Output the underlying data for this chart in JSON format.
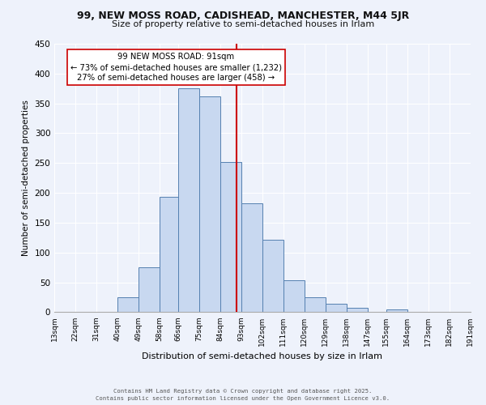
{
  "title": "99, NEW MOSS ROAD, CADISHEAD, MANCHESTER, M44 5JR",
  "subtitle": "Size of property relative to semi-detached houses in Irlam",
  "xlabel": "Distribution of semi-detached houses by size in Irlam",
  "ylabel": "Number of semi-detached properties",
  "bin_edges": [
    13,
    22,
    31,
    40,
    49,
    58,
    66,
    75,
    84,
    93,
    102,
    111,
    120,
    129,
    138,
    147,
    155,
    164,
    173,
    182,
    191
  ],
  "counts": [
    0,
    0,
    0,
    25,
    75,
    193,
    375,
    362,
    252,
    183,
    122,
    53,
    25,
    14,
    7,
    0,
    5,
    0,
    0,
    0
  ],
  "bar_color": "#c8d8f0",
  "bar_edge_color": "#5580b0",
  "property_size": 91,
  "vline_color": "#cc0000",
  "annotation_line1": "99 NEW MOSS ROAD: 91sqm",
  "annotation_line2": "← 73% of semi-detached houses are smaller (1,232)",
  "annotation_line3": "27% of semi-detached houses are larger (458) →",
  "annotation_box_color": "#ffffff",
  "annotation_box_edge": "#cc0000",
  "ylim": [
    0,
    450
  ],
  "yticks": [
    0,
    50,
    100,
    150,
    200,
    250,
    300,
    350,
    400,
    450
  ],
  "tick_labels": [
    "13sqm",
    "22sqm",
    "31sqm",
    "40sqm",
    "49sqm",
    "58sqm",
    "66sqm",
    "75sqm",
    "84sqm",
    "93sqm",
    "102sqm",
    "111sqm",
    "120sqm",
    "129sqm",
    "138sqm",
    "147sqm",
    "155sqm",
    "164sqm",
    "173sqm",
    "182sqm",
    "191sqm"
  ],
  "footer_line1": "Contains HM Land Registry data © Crown copyright and database right 2025.",
  "footer_line2": "Contains public sector information licensed under the Open Government Licence v3.0.",
  "background_color": "#eef2fb",
  "grid_color": "#ffffff"
}
